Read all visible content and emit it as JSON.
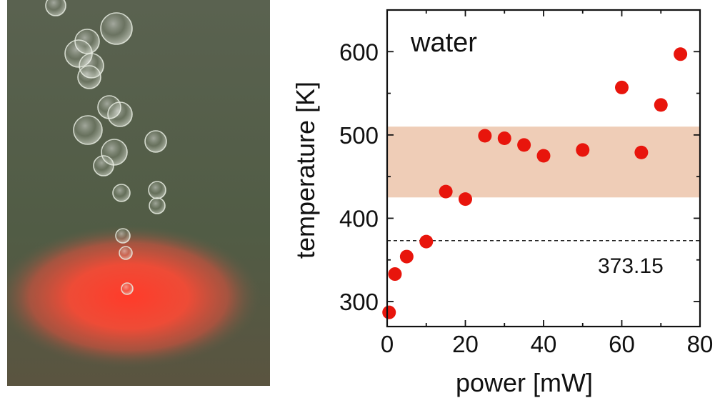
{
  "photo": {
    "subject": "laser-heated spot with rising bubbles",
    "background_color": "#55604a",
    "glow_color": "#ff3b2a"
  },
  "chart_data": {
    "type": "scatter",
    "title": "water",
    "xlabel": "power [mW]",
    "ylabel": "temperature [K]",
    "xlim": [
      0,
      80
    ],
    "ylim": [
      270,
      650
    ],
    "xticks": [
      0,
      20,
      40,
      60,
      80
    ],
    "yticks": [
      300,
      400,
      500,
      600
    ],
    "series": [
      {
        "color": "#e8150c",
        "x": [
          0.5,
          2,
          5,
          10,
          15,
          20,
          25,
          30,
          35,
          40,
          50,
          60,
          65,
          70,
          75
        ],
        "y": [
          287,
          333,
          354,
          372,
          432,
          423,
          499,
          496,
          488,
          475,
          482,
          557,
          479,
          536,
          597
        ]
      }
    ],
    "band": {
      "y_range": [
        425,
        510
      ],
      "color": "#efcdb7"
    },
    "reference_line": {
      "y": 373.15,
      "label": "373.15",
      "style": "dashed"
    },
    "grid": false
  }
}
